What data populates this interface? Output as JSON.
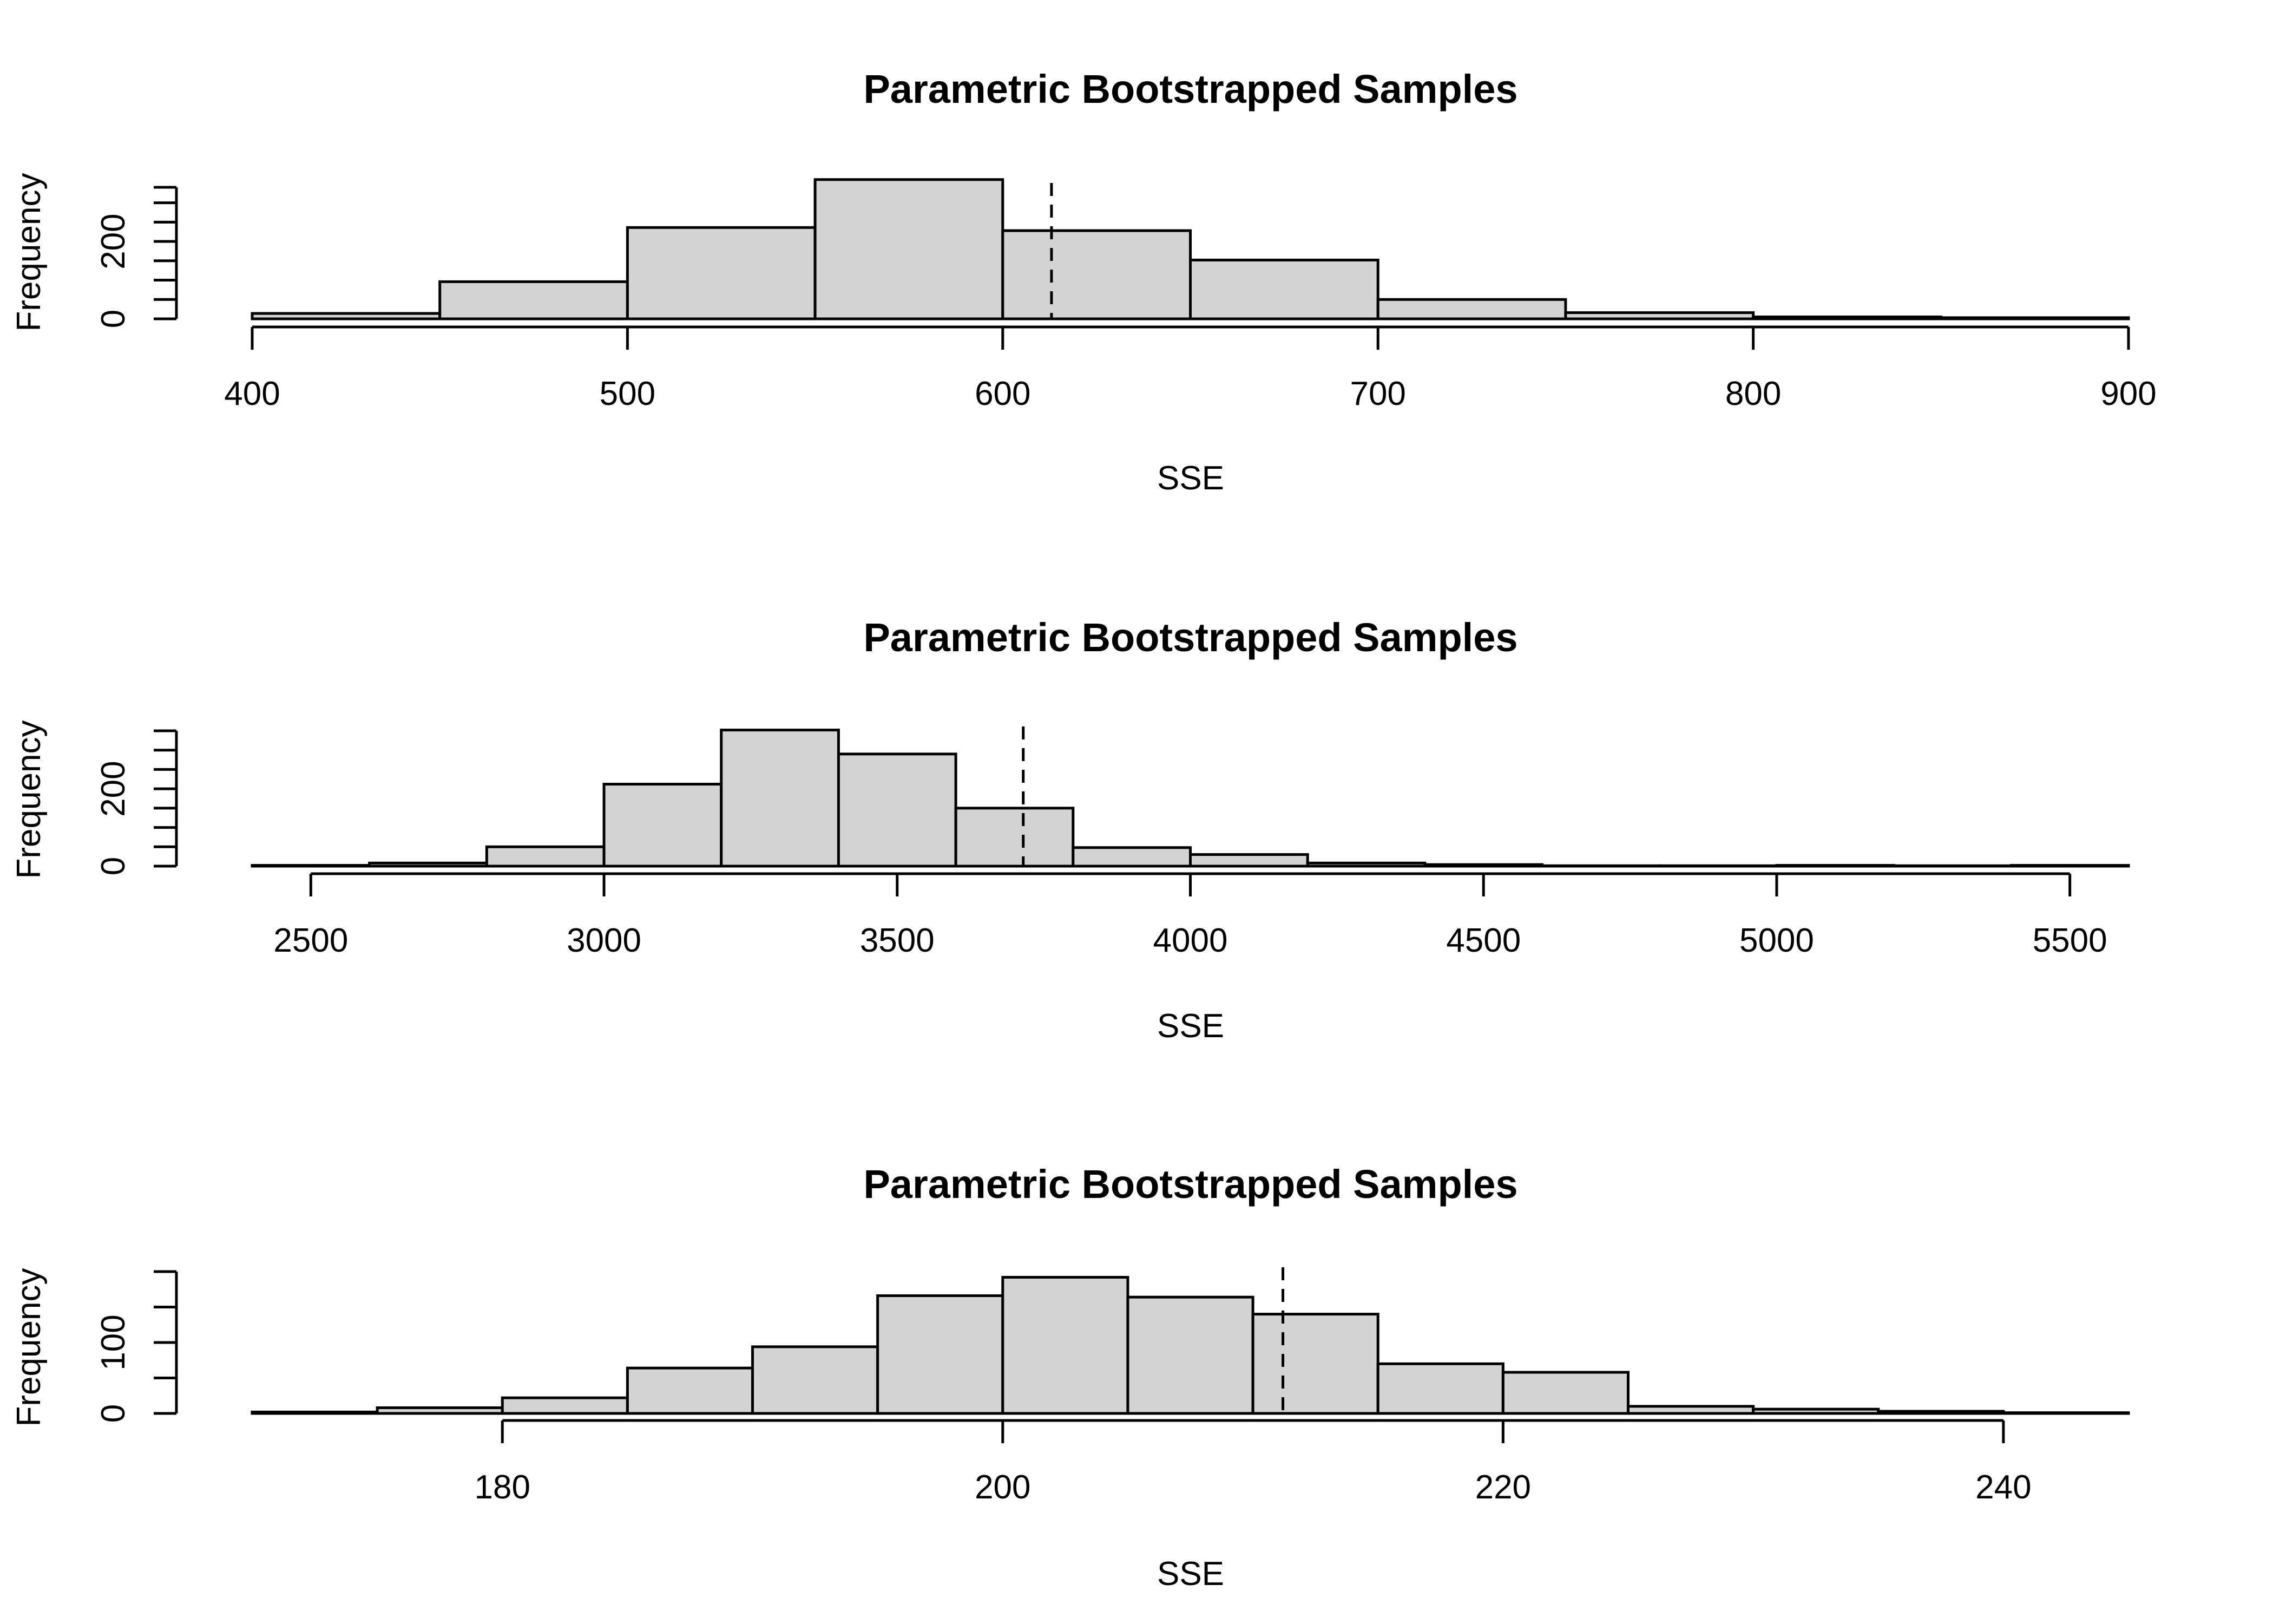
{
  "chart_data": [
    {
      "type": "bar",
      "title": "Parametric Bootstrapped Samples",
      "xlabel": "SSE",
      "ylabel": "Frequency",
      "bin_edges": [
        400,
        450,
        500,
        550,
        600,
        650,
        700,
        750,
        800,
        850,
        900
      ],
      "values": [
        14,
        96,
        236,
        360,
        228,
        152,
        50,
        16,
        5,
        3
      ],
      "xlim": [
        400,
        900
      ],
      "ylim": [
        0,
        340
      ],
      "x_ticks": [
        400,
        500,
        600,
        700,
        800,
        900
      ],
      "x_tick_labels": [
        "400",
        "500",
        "600",
        "700",
        "800",
        "900"
      ],
      "y_ticks": [
        0,
        50,
        100,
        150,
        200,
        250,
        300,
        340
      ],
      "y_tick_labels": [
        "0",
        "",
        "",
        "",
        "200",
        "",
        "",
        ""
      ],
      "reference_line": 613,
      "grid": false
    },
    {
      "type": "bar",
      "title": "Parametric Bootstrapped Samples",
      "xlabel": "SSE",
      "ylabel": "Frequency",
      "bin_edges": [
        2400,
        2600,
        2800,
        3000,
        3200,
        3400,
        3600,
        3800,
        4000,
        4200,
        4400,
        4600,
        4800,
        5000,
        5200,
        5400,
        5600
      ],
      "values": [
        2,
        8,
        50,
        212,
        352,
        290,
        150,
        48,
        30,
        8,
        4,
        1,
        1,
        2,
        1,
        2
      ],
      "xlim": [
        2400,
        5600
      ],
      "ylim": [
        0,
        350
      ],
      "x_ticks": [
        2500,
        3000,
        3500,
        4000,
        4500,
        5000,
        5500
      ],
      "x_tick_labels": [
        "2500",
        "3000",
        "3500",
        "4000",
        "4500",
        "5000",
        "5500"
      ],
      "y_ticks": [
        0,
        50,
        100,
        150,
        200,
        250,
        300,
        350
      ],
      "y_tick_labels": [
        "0",
        "",
        "",
        "",
        "200",
        "",
        "",
        ""
      ],
      "reference_line": 3715,
      "grid": false
    },
    {
      "type": "bar",
      "title": "Parametric Bootstrapped Samples",
      "xlabel": "SSE",
      "ylabel": "Frequency",
      "bin_edges": [
        170,
        175,
        180,
        185,
        190,
        195,
        200,
        205,
        210,
        215,
        220,
        225,
        230,
        235,
        240,
        245
      ],
      "values": [
        2,
        8,
        22,
        64,
        94,
        166,
        192,
        164,
        140,
        70,
        58,
        10,
        6,
        3,
        1
      ],
      "xlim": [
        170,
        245
      ],
      "ylim": [
        0,
        200
      ],
      "x_ticks": [
        180,
        200,
        220,
        240
      ],
      "x_tick_labels": [
        "180",
        "200",
        "220",
        "240"
      ],
      "y_ticks": [
        0,
        50,
        100,
        150,
        200
      ],
      "y_tick_labels": [
        "0",
        "",
        "100",
        "",
        ""
      ],
      "reference_line": 211.2,
      "grid": false
    }
  ]
}
